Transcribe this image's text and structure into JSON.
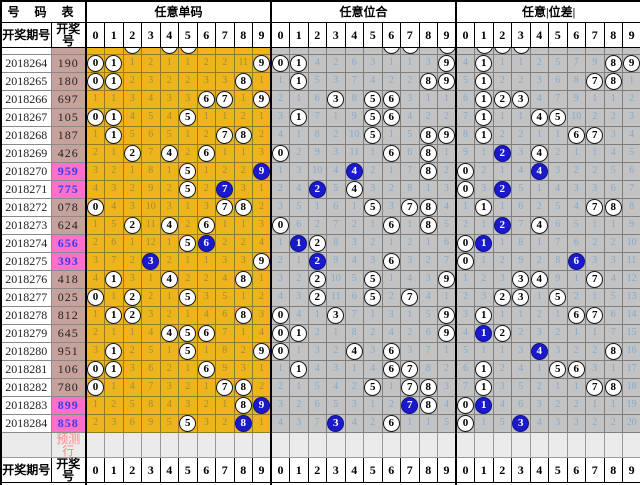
{
  "header": {
    "left_title": "号 码 表",
    "period_label": "开奖期号",
    "number_label": "开奖号",
    "digits": [
      "0",
      "1",
      "2",
      "3",
      "4",
      "5",
      "6",
      "7",
      "8",
      "9"
    ],
    "sections": [
      "任意单码",
      "任意位合",
      "任意|位差|"
    ]
  },
  "prediction_label": "预测行",
  "colors": {
    "section1_bg": "#edb41b",
    "section1_miss_text": "#9d8c3e",
    "section23_bg": "#c3c3c3",
    "section23_miss_text": "#82aacd",
    "hit_circle_fill": "#ffffff",
    "repeat_circle_fill": "#1a1acc",
    "number_col_bg": "#c7a29c",
    "number_highlight_bg": "#ff70c8",
    "number_highlight_text": "#3a3af0",
    "prediction_row_bg": "#ebebeb",
    "prediction_text": "#ff8585"
  },
  "legend_note": "plain number = miss count; O prefix = hit (white circle); B prefix = repeated hit (blue circle)",
  "chart_data": {
    "type": "table",
    "partial_top_row_hits": {
      "s1": [
        2,
        4,
        5
      ],
      "s2": [
        6,
        7,
        9
      ],
      "s3": [
        1,
        2,
        3
      ]
    },
    "rows": [
      {
        "period": "2018264",
        "number": "190",
        "hl": false,
        "s1": [
          "O0",
          "O1",
          "1",
          "2",
          "1",
          "1",
          "2",
          "2",
          "11",
          "O9"
        ],
        "s2": [
          "O0",
          "O1",
          "4",
          "2",
          "6",
          "3",
          "1",
          "1",
          "3",
          "O9"
        ],
        "s3": [
          "4",
          "O1",
          "1",
          "1",
          "2",
          "5",
          "7",
          "9",
          "O8",
          "O9"
        ]
      },
      {
        "period": "2018265",
        "number": "180",
        "hl": false,
        "s1": [
          "O0",
          "O1",
          "2",
          "3",
          "2",
          "2",
          "3",
          "3",
          "O8",
          "1"
        ],
        "s2": [
          "1",
          "O1",
          "5",
          "3",
          "7",
          "4",
          "2",
          "2",
          "O8",
          "O9"
        ],
        "s3": [
          "5",
          "O1",
          "2",
          "2",
          "3",
          "6",
          "8",
          "O7",
          "O8",
          "1"
        ]
      },
      {
        "period": "2018266",
        "number": "697",
        "hl": false,
        "s1": [
          "1",
          "1",
          "3",
          "4",
          "3",
          "3",
          "O6",
          "O7",
          "1",
          "O9"
        ],
        "s2": [
          "2",
          "1",
          "6",
          "O3",
          "8",
          "O5",
          "O6",
          "3",
          "1",
          "1"
        ],
        "s3": [
          "6",
          "O1",
          "O2",
          "O3",
          "4",
          "7",
          "9",
          "1",
          "1",
          "2"
        ]
      },
      {
        "period": "2018267",
        "number": "105",
        "hl": false,
        "s1": [
          "O0",
          "O1",
          "4",
          "5",
          "4",
          "O5",
          "1",
          "1",
          "2",
          "1"
        ],
        "s2": [
          "3",
          "O1",
          "7",
          "1",
          "9",
          "O5",
          "O6",
          "4",
          "2",
          "2"
        ],
        "s3": [
          "7",
          "O1",
          "1",
          "1",
          "O4",
          "O5",
          "10",
          "2",
          "2",
          "3"
        ]
      },
      {
        "period": "2018268",
        "number": "187",
        "hl": false,
        "s1": [
          "1",
          "O1",
          "5",
          "6",
          "5",
          "1",
          "2",
          "O7",
          "O8",
          "2"
        ],
        "s2": [
          "4",
          "1",
          "8",
          "2",
          "10",
          "O5",
          "1",
          "5",
          "O8",
          "O9"
        ],
        "s3": [
          "8",
          "O1",
          "2",
          "2",
          "1",
          "1",
          "O6",
          "O7",
          "3",
          "4"
        ]
      },
      {
        "period": "2018269",
        "number": "426",
        "hl": false,
        "s1": [
          "2",
          "1",
          "O2",
          "7",
          "O4",
          "2",
          "O6",
          "1",
          "1",
          "3"
        ],
        "s2": [
          "O0",
          "2",
          "9",
          "3",
          "11",
          "1",
          "O6",
          "6",
          "O8",
          "1"
        ],
        "s3": [
          "9",
          "1",
          "B2",
          "3",
          "O4",
          "2",
          "1",
          "1",
          "4",
          "5"
        ]
      },
      {
        "period": "2018270",
        "number": "959",
        "hl": true,
        "s1": [
          "3",
          "2",
          "1",
          "8",
          "1",
          "O5",
          "1",
          "2",
          "2",
          "B9"
        ],
        "s2": [
          "1",
          "3",
          "10",
          "4",
          "B4",
          "2",
          "1",
          "7",
          "O8",
          "2"
        ],
        "s3": [
          "O0",
          "2",
          "1",
          "4",
          "B4",
          "3",
          "2",
          "2",
          "5",
          "6"
        ]
      },
      {
        "period": "2018271",
        "number": "775",
        "hl": true,
        "s1": [
          "4",
          "3",
          "2",
          "9",
          "2",
          "O5",
          "2",
          "B7",
          "3",
          "1"
        ],
        "s2": [
          "2",
          "4",
          "B2",
          "5",
          "O4",
          "3",
          "2",
          "8",
          "1",
          "3"
        ],
        "s3": [
          "O0",
          "3",
          "B2",
          "5",
          "1",
          "4",
          "3",
          "3",
          "6",
          "7"
        ]
      },
      {
        "period": "2018272",
        "number": "078",
        "hl": false,
        "s1": [
          "O0",
          "4",
          "3",
          "10",
          "3",
          "1",
          "3",
          "O7",
          "O8",
          "2"
        ],
        "s2": [
          "3",
          "5",
          "1",
          "6",
          "1",
          "O5",
          "3",
          "O7",
          "O8",
          "4"
        ],
        "s3": [
          "1",
          "O1",
          "1",
          "6",
          "2",
          "5",
          "4",
          "O7",
          "O8",
          "8"
        ]
      },
      {
        "period": "2018273",
        "number": "624",
        "hl": false,
        "s1": [
          "1",
          "5",
          "O2",
          "11",
          "O4",
          "2",
          "O6",
          "1",
          "1",
          "3"
        ],
        "s2": [
          "O0",
          "6",
          "2",
          "7",
          "2",
          "1",
          "O6",
          "1",
          "O8",
          "5"
        ],
        "s3": [
          "2",
          "1",
          "B2",
          "7",
          "O4",
          "6",
          "5",
          "1",
          "1",
          "9"
        ]
      },
      {
        "period": "2018274",
        "number": "656",
        "hl": true,
        "s1": [
          "2",
          "6",
          "1",
          "12",
          "1",
          "O5",
          "B6",
          "2",
          "2",
          "4"
        ],
        "s2": [
          "1",
          "B1",
          "O2",
          "8",
          "3",
          "2",
          "1",
          "2",
          "1",
          "6"
        ],
        "s3": [
          "O0",
          "B1",
          "1",
          "8",
          "1",
          "7",
          "6",
          "2",
          "2",
          "10"
        ]
      },
      {
        "period": "2018275",
        "number": "393",
        "hl": true,
        "s1": [
          "3",
          "7",
          "2",
          "B3",
          "2",
          "1",
          "1",
          "3",
          "3",
          "O9"
        ],
        "s2": [
          "2",
          "1",
          "B2",
          "9",
          "4",
          "3",
          "O6",
          "3",
          "2",
          "7"
        ],
        "s3": [
          "O0",
          "1",
          "2",
          "9",
          "2",
          "8",
          "B6",
          "3",
          "3",
          "11"
        ]
      },
      {
        "period": "2018276",
        "number": "418",
        "hl": false,
        "s1": [
          "4",
          "O1",
          "3",
          "1",
          "O4",
          "2",
          "2",
          "4",
          "O8",
          "1"
        ],
        "s2": [
          "3",
          "2",
          "O2",
          "10",
          "5",
          "O5",
          "1",
          "4",
          "3",
          "O9"
        ],
        "s3": [
          "1",
          "2",
          "3",
          "O3",
          "O4",
          "9",
          "1",
          "O7",
          "4",
          "12"
        ]
      },
      {
        "period": "2018277",
        "number": "025",
        "hl": false,
        "s1": [
          "O0",
          "1",
          "O2",
          "2",
          "1",
          "O5",
          "3",
          "5",
          "1",
          "2"
        ],
        "s2": [
          "4",
          "3",
          "O2",
          "11",
          "6",
          "O5",
          "2",
          "O7",
          "4",
          "1"
        ],
        "s3": [
          "2",
          "3",
          "O2",
          "O3",
          "1",
          "O5",
          "2",
          "1",
          "5",
          "13"
        ]
      },
      {
        "period": "2018278",
        "number": "812",
        "hl": false,
        "s1": [
          "1",
          "O1",
          "O2",
          "3",
          "2",
          "1",
          "4",
          "6",
          "O8",
          "3"
        ],
        "s2": [
          "O0",
          "4",
          "1",
          "O3",
          "7",
          "1",
          "3",
          "1",
          "5",
          "O9"
        ],
        "s3": [
          "3",
          "O1",
          "1",
          "1",
          "2",
          "1",
          "O6",
          "O7",
          "6",
          "14"
        ]
      },
      {
        "period": "2018279",
        "number": "645",
        "hl": false,
        "s1": [
          "2",
          "1",
          "1",
          "4",
          "O4",
          "O5",
          "O6",
          "7",
          "1",
          "4"
        ],
        "s2": [
          "O0",
          "O1",
          "2",
          "1",
          "8",
          "2",
          "4",
          "2",
          "6",
          "O9"
        ],
        "s3": [
          "4",
          "B1",
          "O2",
          "2",
          "3",
          "2",
          "1",
          "1",
          "7",
          "15"
        ]
      },
      {
        "period": "2018280",
        "number": "951",
        "hl": false,
        "s1": [
          "3",
          "O1",
          "2",
          "5",
          "1",
          "O5",
          "1",
          "8",
          "2",
          "O9"
        ],
        "s2": [
          "O0",
          "1",
          "3",
          "2",
          "O4",
          "3",
          "O6",
          "3",
          "7",
          "1"
        ],
        "s3": [
          "5",
          "1",
          "1",
          "3",
          "B4",
          "3",
          "2",
          "2",
          "O8",
          "16"
        ]
      },
      {
        "period": "2018281",
        "number": "106",
        "hl": false,
        "s1": [
          "O0",
          "O1",
          "3",
          "6",
          "2",
          "1",
          "O6",
          "9",
          "3",
          "1"
        ],
        "s2": [
          "1",
          "O1",
          "4",
          "3",
          "1",
          "4",
          "O6",
          "O7",
          "8",
          "2"
        ],
        "s3": [
          "6",
          "O1",
          "2",
          "4",
          "1",
          "O5",
          "O6",
          "3",
          "1",
          "17"
        ]
      },
      {
        "period": "2018282",
        "number": "780",
        "hl": false,
        "s1": [
          "O0",
          "1",
          "4",
          "7",
          "3",
          "2",
          "1",
          "O7",
          "O8",
          "2"
        ],
        "s2": [
          "2",
          "1",
          "5",
          "4",
          "2",
          "O5",
          "1",
          "O7",
          "O8",
          "3"
        ],
        "s3": [
          "7",
          "O1",
          "3",
          "5",
          "2",
          "1",
          "1",
          "O7",
          "O8",
          "18"
        ]
      },
      {
        "period": "2018283",
        "number": "899",
        "hl": true,
        "s1": [
          "1",
          "2",
          "5",
          "8",
          "4",
          "3",
          "2",
          "1",
          "O8",
          "B9"
        ],
        "s2": [
          "3",
          "2",
          "6",
          "5",
          "3",
          "1",
          "2",
          "B7",
          "O8",
          "4"
        ],
        "s3": [
          "O0",
          "B1",
          "4",
          "6",
          "3",
          "2",
          "2",
          "1",
          "1",
          "19"
        ]
      },
      {
        "period": "2018284",
        "number": "858",
        "hl": true,
        "s1": [
          "2",
          "3",
          "6",
          "9",
          "5",
          "O5",
          "3",
          "2",
          "B8",
          "1"
        ],
        "s2": [
          "4",
          "3",
          "7",
          "B3",
          "4",
          "2",
          "O6",
          "1",
          "1",
          "5"
        ],
        "s3": [
          "O0",
          "1",
          "5",
          "B3",
          "4",
          "3",
          "3",
          "2",
          "2",
          "20"
        ]
      }
    ]
  }
}
